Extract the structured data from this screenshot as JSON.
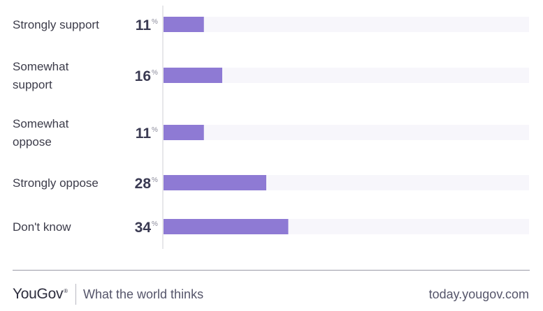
{
  "chart_data": {
    "type": "bar",
    "orientation": "horizontal",
    "categories": [
      [
        "Strongly support"
      ],
      [
        "Somewhat",
        "support"
      ],
      [
        "Somewhat",
        "oppose"
      ],
      [
        "Strongly oppose"
      ],
      [
        "Don't know"
      ]
    ],
    "values": [
      11,
      16,
      11,
      28,
      34
    ],
    "unit": "%",
    "xlim": [
      0,
      100
    ],
    "bar_color": "#8e7ad4",
    "track_color": "#f7f6fb",
    "axis_color": "#cfcfd6"
  },
  "footer": {
    "brand": "YouGov",
    "brand_mark": "®",
    "tagline": "What the world thinks",
    "url": "today.yougov.com"
  }
}
